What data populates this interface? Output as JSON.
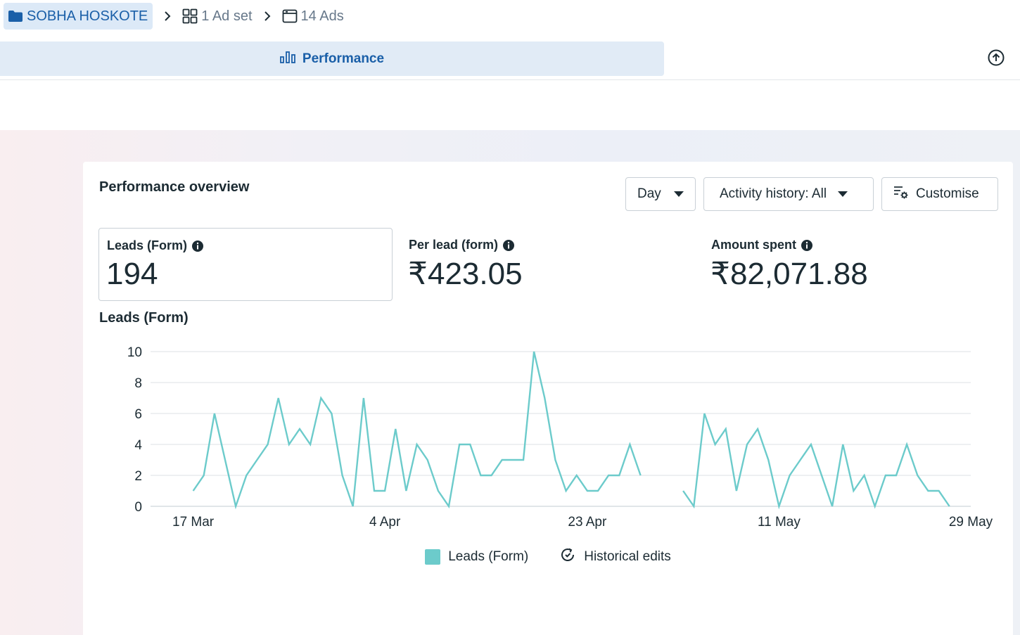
{
  "breadcrumb": {
    "campaign": "SOBHA HOSKOTE",
    "adset": "1 Ad set",
    "ads": "14 Ads"
  },
  "tabs": {
    "performance": "Performance"
  },
  "overview": {
    "title": "Performance overview",
    "day_label": "Day",
    "activity_label": "Activity history: All",
    "customise_label": "Customise"
  },
  "metrics": [
    {
      "label": "Leads (Form)",
      "value": "194"
    },
    {
      "label": "Per lead (form)",
      "value": "₹423.05"
    },
    {
      "label": "Amount spent",
      "value": "₹82,071.88"
    }
  ],
  "chart_title": "Leads (Form)",
  "legend": {
    "series": "Leads (Form)",
    "edits": "Historical edits"
  },
  "colors": {
    "accent": "#1a5fa8",
    "series": "#6ccbcb"
  },
  "chart_data": {
    "type": "line",
    "title": "Leads (Form)",
    "xlabel": "",
    "ylabel": "",
    "ylim": [
      0,
      10
    ],
    "y_ticks": [
      0,
      2,
      4,
      6,
      8,
      10
    ],
    "x_range": [
      "2025-03-13",
      "2025-05-29"
    ],
    "x_ticks": [
      {
        "date": "2025-03-17",
        "label": "17 Mar"
      },
      {
        "date": "2025-04-04",
        "label": "4 Apr"
      },
      {
        "date": "2025-04-23",
        "label": "23 Apr"
      },
      {
        "date": "2025-05-11",
        "label": "11 May"
      },
      {
        "date": "2025-05-29",
        "label": "29 May"
      }
    ],
    "grid": true,
    "legend_position": "bottom",
    "series": [
      {
        "name": "Leads (Form)",
        "color": "#6ccbcb",
        "segments": [
          {
            "start": "2025-03-17",
            "values": [
              1,
              2,
              6,
              3,
              0,
              2,
              3,
              4,
              7,
              4,
              5,
              4,
              7,
              6,
              2,
              0,
              7,
              1,
              1,
              5,
              1,
              4,
              3,
              1,
              0,
              4,
              4,
              2,
              2,
              3,
              3,
              3,
              10,
              7,
              3,
              1,
              2,
              1,
              1,
              2,
              2,
              4,
              2
            ]
          },
          {
            "start": "2025-05-02",
            "values": [
              1,
              0,
              6,
              4,
              5,
              1,
              4,
              5,
              3,
              0,
              2,
              3,
              4,
              2,
              0,
              4,
              1,
              2,
              0,
              2,
              2,
              4,
              2,
              1,
              1,
              0
            ]
          }
        ]
      }
    ]
  }
}
